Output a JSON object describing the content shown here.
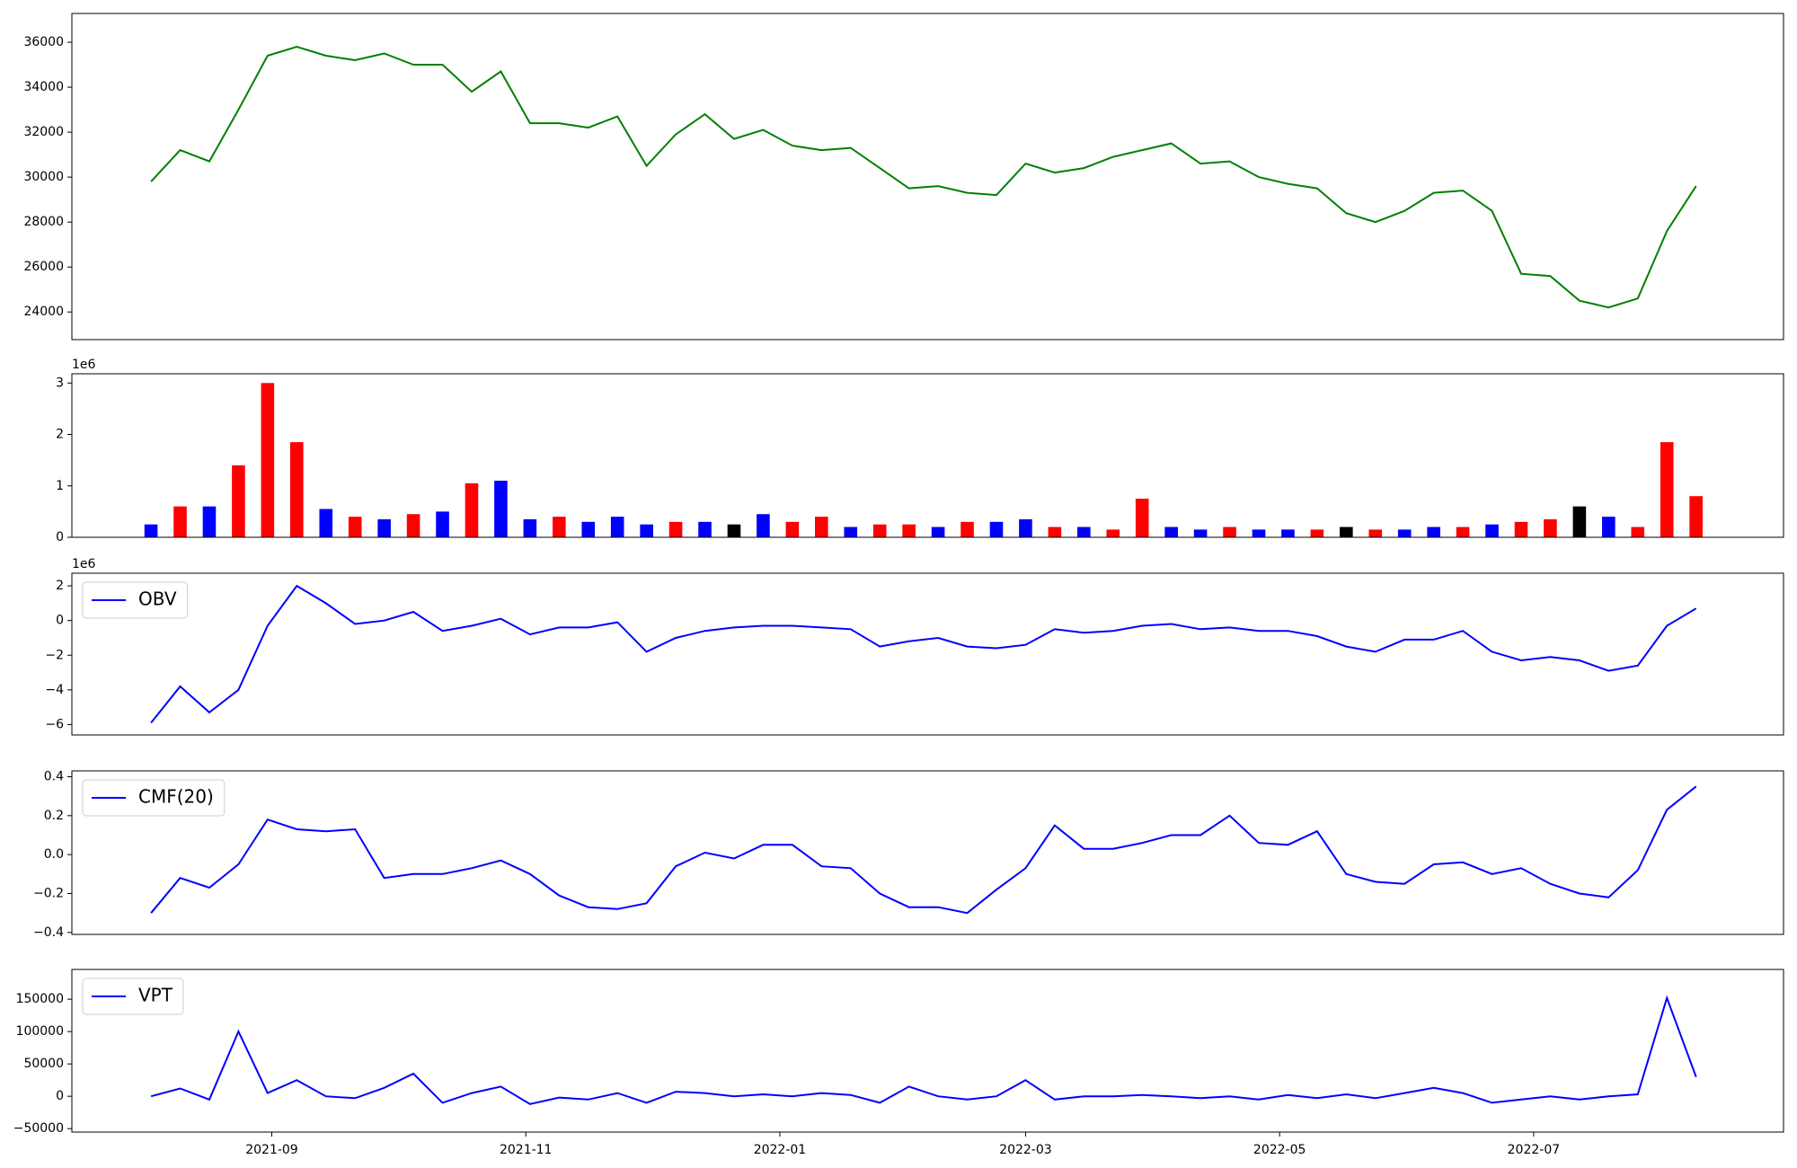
{
  "chart_data": [
    {
      "type": "line",
      "x": [
        18842,
        18849,
        18856,
        18863,
        18870,
        18877,
        18884,
        18891,
        18898,
        18905,
        18912,
        18919,
        18926,
        18933,
        18940,
        18947,
        18954,
        18961,
        18968,
        18975,
        18982,
        18989,
        18996,
        19003,
        19010,
        19017,
        19024,
        19031,
        19038,
        19045,
        19052,
        19059,
        19066,
        19073,
        19080,
        19087,
        19094,
        19101,
        19108,
        19115,
        19122,
        19129,
        19136,
        19143,
        19150,
        19157,
        19164,
        19171,
        19178,
        19185,
        19192,
        19199,
        19206,
        19213
      ],
      "xlim": [
        18823,
        19234
      ],
      "series": [
        {
          "color": "green",
          "values": [
            29800,
            31200,
            30700,
            33000,
            35400,
            35800,
            35400,
            35200,
            35500,
            35000,
            35000,
            33800,
            34700,
            32400,
            32400,
            32200,
            32700,
            30500,
            31900,
            32800,
            31700,
            32100,
            31400,
            31200,
            31300,
            30400,
            29500,
            29600,
            29300,
            29200,
            30600,
            30200,
            30400,
            30900,
            31200,
            31500,
            30600,
            30700,
            30000,
            29700,
            29500,
            28400,
            28000,
            28500,
            29300,
            29400,
            28500,
            25700,
            25600,
            24500,
            24200,
            24600,
            27600,
            29600
          ]
        }
      ],
      "ylim": [
        22770,
        37280
      ],
      "yticks": [
        24000,
        26000,
        28000,
        30000,
        32000,
        34000,
        36000
      ]
    },
    {
      "type": "bar",
      "x": [
        18842,
        18849,
        18856,
        18863,
        18870,
        18877,
        18884,
        18891,
        18898,
        18905,
        18912,
        18919,
        18926,
        18933,
        18940,
        18947,
        18954,
        18961,
        18968,
        18975,
        18982,
        18989,
        18996,
        19003,
        19010,
        19017,
        19024,
        19031,
        19038,
        19045,
        19052,
        19059,
        19066,
        19073,
        19080,
        19087,
        19094,
        19101,
        19108,
        19115,
        19122,
        19129,
        19136,
        19143,
        19150,
        19157,
        19164,
        19171,
        19178,
        19185,
        19192,
        19199,
        19206,
        19213
      ],
      "xlim": [
        18823,
        19234
      ],
      "values": [
        250000,
        600000,
        600000,
        1400000,
        3000000,
        1850000,
        550000,
        400000,
        350000,
        450000,
        500000,
        1050000,
        1100000,
        350000,
        400000,
        300000,
        400000,
        250000,
        300000,
        300000,
        250000,
        450000,
        300000,
        400000,
        200000,
        250000,
        250000,
        200000,
        300000,
        300000,
        350000,
        200000,
        200000,
        150000,
        750000,
        200000,
        150000,
        200000,
        150000,
        150000,
        150000,
        200000,
        150000,
        150000,
        200000,
        200000,
        250000,
        300000,
        350000,
        600000,
        400000,
        200000,
        1850000,
        800000
      ],
      "colors": [
        "blue",
        "red",
        "blue",
        "red",
        "red",
        "red",
        "blue",
        "red",
        "blue",
        "red",
        "blue",
        "red",
        "blue",
        "blue",
        "red",
        "blue",
        "blue",
        "blue",
        "red",
        "blue",
        "black",
        "blue",
        "red",
        "red",
        "blue",
        "red",
        "red",
        "blue",
        "red",
        "blue",
        "blue",
        "red",
        "blue",
        "red",
        "red",
        "blue",
        "blue",
        "red",
        "blue",
        "blue",
        "red",
        "black",
        "red",
        "blue",
        "blue",
        "red",
        "blue",
        "red",
        "red",
        "black",
        "blue",
        "red",
        "red",
        "red"
      ],
      "ylim": [
        0,
        3180000
      ],
      "yticks": [
        0,
        {
          "value": 1000000,
          "label": "1"
        },
        {
          "value": 2000000,
          "label": "2"
        },
        {
          "value": 3000000,
          "label": "3"
        }
      ],
      "offset_label": "1e6"
    },
    {
      "type": "line",
      "x": [
        18842,
        18849,
        18856,
        18863,
        18870,
        18877,
        18884,
        18891,
        18898,
        18905,
        18912,
        18919,
        18926,
        18933,
        18940,
        18947,
        18954,
        18961,
        18968,
        18975,
        18982,
        18989,
        18996,
        19003,
        19010,
        19017,
        19024,
        19031,
        19038,
        19045,
        19052,
        19059,
        19066,
        19073,
        19080,
        19087,
        19094,
        19101,
        19108,
        19115,
        19122,
        19129,
        19136,
        19143,
        19150,
        19157,
        19164,
        19171,
        19178,
        19185,
        19192,
        19199,
        19206,
        19213
      ],
      "xlim": [
        18823,
        19234
      ],
      "series": [
        {
          "name": "OBV",
          "color": "blue",
          "values": [
            -5900000,
            -3800000,
            -5300000,
            -4000000,
            -300000,
            2000000,
            1000000,
            -200000,
            0,
            500000,
            -600000,
            -300000,
            100000,
            -800000,
            -400000,
            -400000,
            -100000,
            -1800000,
            -1000000,
            -600000,
            -400000,
            -300000,
            -300000,
            -400000,
            -500000,
            -1500000,
            -1200000,
            -1000000,
            -1500000,
            -1600000,
            -1400000,
            -500000,
            -700000,
            -600000,
            -300000,
            -200000,
            -500000,
            -400000,
            -600000,
            -600000,
            -900000,
            -1500000,
            -1800000,
            -1100000,
            -1100000,
            -600000,
            -1800000,
            -2300000,
            -2100000,
            -2300000,
            -2900000,
            -2600000,
            -300000,
            700000
          ]
        }
      ],
      "ylim": [
        -6600000,
        2730000
      ],
      "yticks": [
        {
          "value": -6000000,
          "label": "−6"
        },
        {
          "value": -4000000,
          "label": "−4"
        },
        {
          "value": -2000000,
          "label": "−2"
        },
        {
          "value": 0,
          "label": "0"
        },
        {
          "value": 2000000,
          "label": "2"
        }
      ],
      "offset_label": "1e6",
      "legend": "upper left"
    },
    {
      "type": "line",
      "x": [
        18842,
        18849,
        18856,
        18863,
        18870,
        18877,
        18884,
        18891,
        18898,
        18905,
        18912,
        18919,
        18926,
        18933,
        18940,
        18947,
        18954,
        18961,
        18968,
        18975,
        18982,
        18989,
        18996,
        19003,
        19010,
        19017,
        19024,
        19031,
        19038,
        19045,
        19052,
        19059,
        19066,
        19073,
        19080,
        19087,
        19094,
        19101,
        19108,
        19115,
        19122,
        19129,
        19136,
        19143,
        19150,
        19157,
        19164,
        19171,
        19178,
        19185,
        19192,
        19199,
        19206,
        19213
      ],
      "xlim": [
        18823,
        19234
      ],
      "series": [
        {
          "name": "CMF(20)",
          "color": "blue",
          "values": [
            -0.3,
            -0.12,
            -0.17,
            -0.05,
            0.18,
            0.13,
            0.12,
            0.13,
            -0.12,
            -0.1,
            -0.1,
            -0.07,
            -0.03,
            -0.1,
            -0.21,
            -0.27,
            -0.28,
            -0.25,
            -0.06,
            0.01,
            -0.02,
            0.05,
            0.05,
            -0.06,
            -0.07,
            -0.2,
            -0.27,
            -0.27,
            -0.3,
            -0.18,
            -0.07,
            0.15,
            0.03,
            0.03,
            0.06,
            0.1,
            0.1,
            0.2,
            0.06,
            0.05,
            0.12,
            -0.1,
            -0.14,
            -0.15,
            -0.05,
            -0.04,
            -0.1,
            -0.07,
            -0.15,
            -0.2,
            -0.22,
            -0.08,
            0.23,
            0.35
          ]
        }
      ],
      "ylim": [
        -0.41,
        0.43
      ],
      "yticks": [
        {
          "value": -0.4,
          "label": "−0.4"
        },
        {
          "value": -0.2,
          "label": "−0.2"
        },
        {
          "value": 0,
          "label": "0.0"
        },
        0.2,
        0.4
      ],
      "legend": "upper left"
    },
    {
      "type": "line",
      "x": [
        18842,
        18849,
        18856,
        18863,
        18870,
        18877,
        18884,
        18891,
        18898,
        18905,
        18912,
        18919,
        18926,
        18933,
        18940,
        18947,
        18954,
        18961,
        18968,
        18975,
        18982,
        18989,
        18996,
        19003,
        19010,
        19017,
        19024,
        19031,
        19038,
        19045,
        19052,
        19059,
        19066,
        19073,
        19080,
        19087,
        19094,
        19101,
        19108,
        19115,
        19122,
        19129,
        19136,
        19143,
        19150,
        19157,
        19164,
        19171,
        19178,
        19185,
        19192,
        19199,
        19206,
        19213
      ],
      "xlim": [
        18823,
        19234
      ],
      "xticks": [
        {
          "value": 18871,
          "label": "2021-09"
        },
        {
          "value": 18932,
          "label": "2021-11"
        },
        {
          "value": 18993,
          "label": "2022-01"
        },
        {
          "value": 19052,
          "label": "2022-03"
        },
        {
          "value": 19113,
          "label": "2022-05"
        },
        {
          "value": 19174,
          "label": "2022-07"
        }
      ],
      "series": [
        {
          "name": "VPT",
          "color": "blue",
          "values": [
            0,
            12000,
            -5000,
            100000,
            5000,
            25000,
            0,
            -3000,
            13000,
            35000,
            -10000,
            5000,
            15000,
            -12000,
            -2000,
            -5000,
            5000,
            -10000,
            7000,
            5000,
            0,
            3000,
            0,
            5000,
            2000,
            -10000,
            15000,
            0,
            -5000,
            0,
            25000,
            -5000,
            0,
            0,
            2000,
            0,
            -3000,
            0,
            -5000,
            2000,
            -3000,
            3000,
            -3000,
            5000,
            13000,
            5000,
            -10000,
            -5000,
            0,
            -5000,
            0,
            3000,
            152000,
            30000
          ]
        }
      ],
      "ylim": [
        -55300,
        196000
      ],
      "yticks": [
        {
          "value": -50000,
          "label": "−50000"
        },
        0,
        50000,
        100000,
        150000
      ],
      "legend": "upper left"
    }
  ]
}
